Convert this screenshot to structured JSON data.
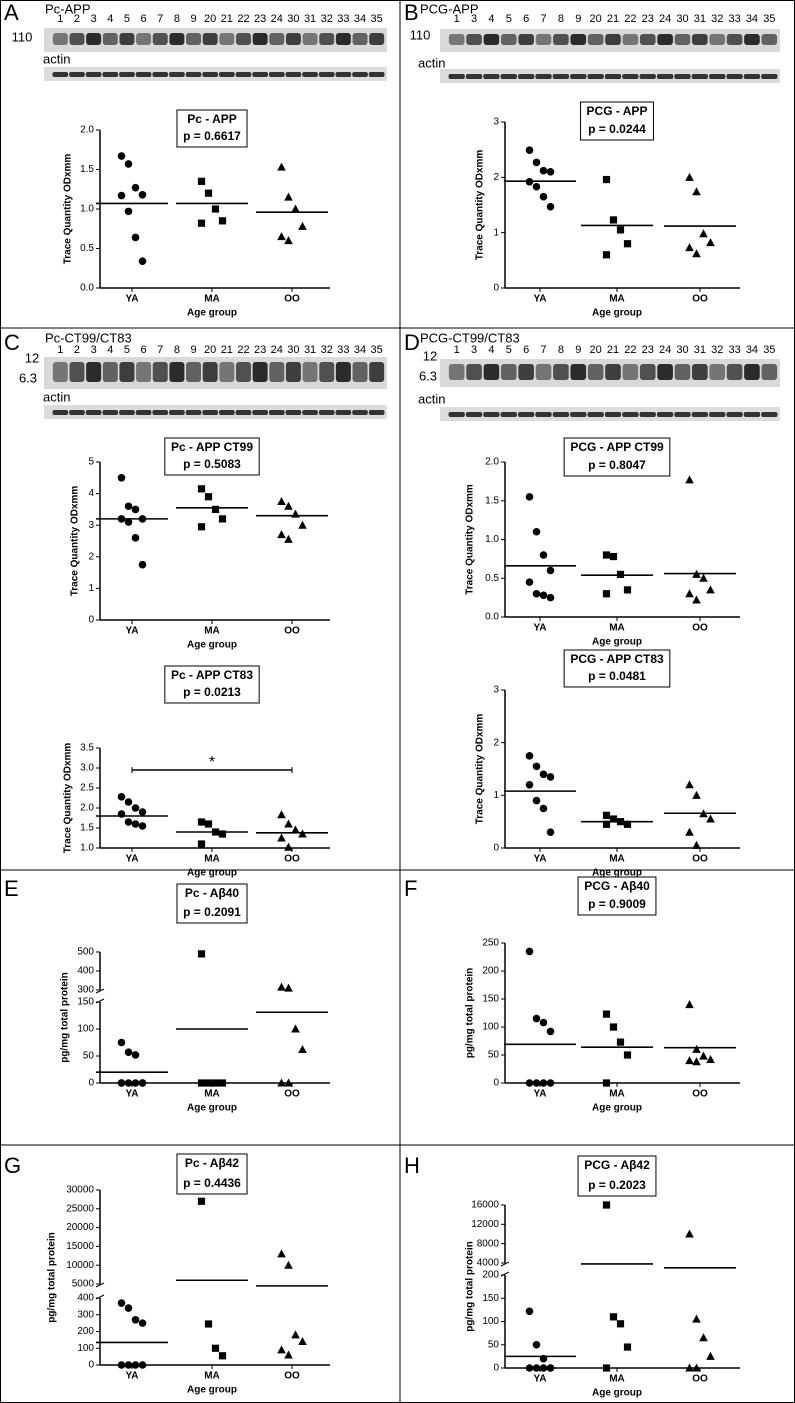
{
  "panels": [
    {
      "letter": "A",
      "blot": {
        "title": "Pc-APP",
        "lanes": [
          "1",
          "2",
          "3",
          "4",
          "5",
          "6",
          "7",
          "8",
          "9",
          "20",
          "21",
          "22",
          "23",
          "24",
          "30",
          "31",
          "32",
          "33",
          "34",
          "35"
        ],
        "markers": [
          "110"
        ],
        "control": "actin"
      }
    },
    {
      "letter": "B",
      "blot": {
        "title": "PCG-APP",
        "lanes": [
          "1",
          "3",
          "4",
          "5",
          "6",
          "7",
          "8",
          "9",
          "20",
          "21",
          "22",
          "23",
          "24",
          "30",
          "31",
          "32",
          "33",
          "34",
          "35"
        ],
        "markers": [
          "110"
        ],
        "control": "actin"
      }
    },
    {
      "letter": "C",
      "blot": {
        "title": "Pc-CT99/CT83",
        "lanes": [
          "1",
          "2",
          "3",
          "4",
          "5",
          "6",
          "7",
          "8",
          "9",
          "20",
          "21",
          "22",
          "23",
          "24",
          "30",
          "31",
          "32",
          "33",
          "34",
          "35"
        ],
        "markers": [
          "12",
          "6.3"
        ],
        "control": "actin"
      }
    },
    {
      "letter": "D",
      "blot": {
        "title": "PCG-CT99/CT83",
        "lanes": [
          "1",
          "3",
          "4",
          "5",
          "6",
          "7",
          "8",
          "9",
          "20",
          "21",
          "22",
          "23",
          "24",
          "30",
          "31",
          "32",
          "33",
          "34",
          "35"
        ],
        "markers": [
          "12",
          "6.3"
        ],
        "control": "actin"
      }
    },
    {
      "letter": "E"
    },
    {
      "letter": "F"
    },
    {
      "letter": "G"
    },
    {
      "letter": "H"
    }
  ],
  "chart_data": [
    {
      "type": "dot",
      "title": "Pc - APP",
      "subtitle": "p = 0.6617",
      "ylabel": "Trace Quantity ODxmm",
      "xlabel": "Age group",
      "categories": [
        "YA",
        "MA",
        "OO"
      ],
      "markers": [
        "circle",
        "square",
        "triangle"
      ],
      "color": "#000000",
      "values": [
        [
          1.67,
          1.57,
          1.27,
          1.18,
          1.17,
          0.97,
          0.64,
          0.34
        ],
        [
          1.35,
          1.2,
          1.0,
          0.85,
          0.82
        ],
        [
          1.53,
          1.15,
          1.0,
          0.78,
          0.65,
          0.6
        ]
      ],
      "means": [
        1.07,
        1.07,
        0.96
      ],
      "ylim": [
        0,
        2
      ],
      "yticks": [
        {
          "value": 0,
          "label": "0.0"
        },
        0.5,
        {
          "value": 1,
          "label": "1.0"
        },
        1.5,
        {
          "value": 2,
          "label": "2.0"
        }
      ]
    },
    {
      "type": "dot",
      "title": "PCG - APP",
      "subtitle": "p = 0.0244",
      "ylabel": "Trace Quantity ODxmm",
      "xlabel": "Age group",
      "categories": [
        "YA",
        "MA",
        "OO"
      ],
      "markers": [
        "circle",
        "square",
        "triangle"
      ],
      "color": "#000000",
      "values": [
        [
          2.49,
          2.27,
          2.12,
          2.1,
          1.92,
          1.83,
          1.65,
          1.47
        ],
        [
          1.96,
          1.23,
          1.05,
          0.8,
          0.6
        ],
        [
          2.0,
          1.74,
          0.98,
          0.82,
          0.73,
          0.62
        ]
      ],
      "means": [
        1.93,
        1.13,
        1.12
      ],
      "ylim": [
        0,
        3
      ],
      "yticks": [
        0,
        1,
        2,
        3
      ]
    },
    {
      "type": "dot",
      "title": "Pc - APP CT99",
      "subtitle": "p = 0.5083",
      "ylabel": "Trace Quantity ODxmm",
      "xlabel": "Age group",
      "categories": [
        "YA",
        "MA",
        "OO"
      ],
      "markers": [
        "circle",
        "square",
        "triangle"
      ],
      "color": "#000000",
      "values": [
        [
          4.5,
          3.6,
          3.5,
          3.2,
          3.2,
          3.1,
          2.6,
          1.75
        ],
        [
          4.15,
          3.9,
          3.5,
          3.2,
          2.95
        ],
        [
          3.75,
          3.6,
          3.35,
          3.0,
          2.7,
          2.55
        ]
      ],
      "means": [
        3.2,
        3.55,
        3.3
      ],
      "ylim": [
        0,
        5
      ],
      "yticks": [
        0,
        1,
        2,
        3,
        4,
        5
      ]
    },
    {
      "type": "dot",
      "title": "Pc - APP CT83",
      "subtitle": "p = 0.0213",
      "ylabel": "Trace Quantity ODxmm",
      "xlabel": "Age group",
      "categories": [
        "YA",
        "MA",
        "OO"
      ],
      "markers": [
        "circle",
        "square",
        "triangle"
      ],
      "color": "#000000",
      "annotation": "*",
      "values": [
        [
          2.28,
          2.15,
          2.0,
          1.9,
          1.85,
          1.65,
          1.6,
          1.55
        ],
        [
          1.65,
          1.6,
          1.4,
          1.35,
          1.1
        ],
        [
          1.83,
          1.6,
          1.45,
          1.35,
          1.25,
          1.02
        ]
      ],
      "means": [
        1.8,
        1.4,
        1.38
      ],
      "ylim": [
        1,
        3.5
      ],
      "yticks": [
        {
          "value": 1,
          "label": "1.0"
        },
        1.5,
        {
          "value": 2,
          "label": "2.0"
        },
        2.5,
        {
          "value": 3,
          "label": "3.0"
        },
        3.5
      ]
    },
    {
      "type": "dot",
      "title": "PCG - APP CT99",
      "subtitle": "p = 0.8047",
      "ylabel": "Trace Quantity ODxmm",
      "xlabel": "Age group",
      "categories": [
        "YA",
        "MA",
        "OO"
      ],
      "markers": [
        "circle",
        "square",
        "triangle"
      ],
      "color": "#000000",
      "values": [
        [
          1.55,
          1.1,
          0.8,
          0.6,
          0.45,
          0.3,
          0.28,
          0.25
        ],
        [
          0.8,
          0.78,
          0.55,
          0.35,
          0.3
        ],
        [
          1.77,
          0.55,
          0.5,
          0.35,
          0.3,
          0.22
        ]
      ],
      "means": [
        0.66,
        0.54,
        0.56
      ],
      "ylim": [
        0,
        2
      ],
      "yticks": [
        {
          "value": 0,
          "label": "0.0"
        },
        0.5,
        {
          "value": 1,
          "label": "1.0"
        },
        1.5,
        {
          "value": 2,
          "label": "2.0"
        }
      ]
    },
    {
      "type": "dot",
      "title": "PCG - APP CT83",
      "subtitle": "p = 0.0481",
      "ylabel": "Trace Quantity ODxmm",
      "xlabel": "Age group",
      "categories": [
        "YA",
        "MA",
        "OO"
      ],
      "markers": [
        "circle",
        "square",
        "triangle"
      ],
      "color": "#000000",
      "values": [
        [
          1.75,
          1.55,
          1.4,
          1.35,
          1.2,
          0.9,
          0.75,
          0.3
        ],
        [
          0.62,
          0.55,
          0.5,
          0.45,
          0.45
        ],
        [
          1.2,
          1.0,
          0.65,
          0.55,
          0.3,
          0.05
        ]
      ],
      "means": [
        1.08,
        0.5,
        0.66
      ],
      "ylim": [
        0,
        3
      ],
      "yticks": [
        0,
        1,
        2,
        3
      ]
    },
    {
      "type": "dot",
      "title": "Pc - Aβ40",
      "subtitle": "p = 0.2091",
      "ylabel": "pg/mg total protein",
      "xlabel": "Age group",
      "categories": [
        "YA",
        "MA",
        "OO"
      ],
      "markers": [
        "circle",
        "square",
        "triangle"
      ],
      "color": "#000000",
      "values": [
        [
          75,
          57,
          52,
          0,
          0,
          0,
          0,
          0,
          0
        ],
        [
          490,
          0,
          0,
          0,
          0
        ],
        [
          315,
          310,
          100,
          62,
          0,
          0
        ]
      ],
      "means": [
        20,
        100,
        131
      ],
      "ylim": [
        0,
        150
      ],
      "yticks": [
        0,
        50,
        100,
        150
      ],
      "ylim_upper": [
        300,
        500
      ],
      "yticks_upper": [
        300,
        400,
        500
      ]
    },
    {
      "type": "dot",
      "title": "PCG - Aβ40",
      "subtitle": "p = 0.9009",
      "ylabel": "pg/mg total protein",
      "xlabel": "Age group",
      "categories": [
        "YA",
        "MA",
        "OO"
      ],
      "markers": [
        "circle",
        "square",
        "triangle"
      ],
      "color": "#000000",
      "values": [
        [
          235,
          115,
          108,
          92,
          0,
          0,
          0,
          0
        ],
        [
          123,
          100,
          73,
          50,
          0
        ],
        [
          140,
          60,
          48,
          42,
          40,
          38
        ]
      ],
      "means": [
        69,
        64,
        63
      ],
      "ylim": [
        0,
        250
      ],
      "yticks": [
        0,
        50,
        100,
        150,
        200,
        250
      ]
    },
    {
      "type": "dot",
      "title": "Pc - Aβ42",
      "subtitle": "p = 0.4436",
      "ylabel": "pg/mg total protein",
      "xlabel": "Age group",
      "categories": [
        "YA",
        "MA",
        "OO"
      ],
      "markers": [
        "circle",
        "square",
        "triangle"
      ],
      "color": "#000000",
      "values": [
        [
          370,
          340,
          270,
          250,
          0,
          0,
          0,
          0
        ],
        [
          27000,
          245,
          100,
          55
        ],
        [
          13000,
          10000,
          180,
          140,
          90,
          60
        ]
      ],
      "means": [
        135,
        6000,
        4500
      ],
      "ylim": [
        0,
        400
      ],
      "yticks": [
        0,
        100,
        200,
        300,
        400
      ],
      "ylim_upper": [
        5000,
        30000
      ],
      "yticks_upper": [
        5000,
        10000,
        15000,
        20000,
        25000,
        30000
      ]
    },
    {
      "type": "dot",
      "title": "PCG - Aβ42",
      "subtitle": "p = 0.2023",
      "ylabel": "pg/mg total protein",
      "xlabel": "Age group",
      "categories": [
        "YA",
        "MA",
        "OO"
      ],
      "markers": [
        "circle",
        "square",
        "triangle"
      ],
      "color": "#000000",
      "values": [
        [
          122,
          50,
          20,
          0,
          0,
          0,
          0,
          0
        ],
        [
          16000,
          110,
          95,
          45,
          0
        ],
        [
          10000,
          105,
          65,
          25,
          0,
          0
        ]
      ],
      "means": [
        25,
        3800,
        3000
      ],
      "ylim": [
        0,
        200
      ],
      "yticks": [
        0,
        50,
        100,
        150,
        200
      ],
      "ylim_upper": [
        4000,
        16000
      ],
      "yticks_upper": [
        4000,
        8000,
        12000,
        16000
      ]
    }
  ]
}
